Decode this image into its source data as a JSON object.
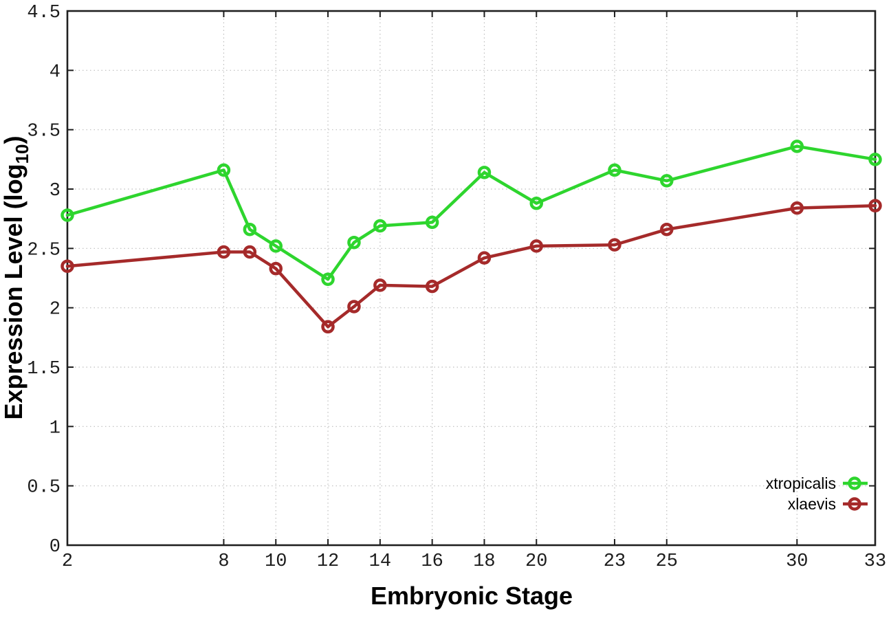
{
  "figure": {
    "background": "#ffffff",
    "grid_color": "#bdbdbd",
    "border_color": "#1f1f1f",
    "text_color": "#1c1c1c"
  },
  "chart_data": {
    "type": "line",
    "title": "",
    "xlabel": "Embryonic Stage",
    "ylabel": "Expression Level (log10)",
    "ylabel_parts": {
      "main": "Expression Level (log",
      "sub": "10",
      "end": ")"
    },
    "xlim": [
      2,
      33
    ],
    "ylim": [
      0,
      4.5
    ],
    "x_ticks": [
      2,
      8,
      10,
      12,
      14,
      16,
      18,
      20,
      23,
      25,
      30,
      33
    ],
    "y_ticks": [
      0,
      0.5,
      1,
      1.5,
      2,
      2.5,
      3,
      3.5,
      4,
      4.5
    ],
    "grid": true,
    "legend_position": "bottom-right",
    "marker": "open-circle",
    "x": [
      2,
      8,
      9,
      10,
      12,
      13,
      14,
      16,
      18,
      20,
      23,
      25,
      30,
      33
    ],
    "series": [
      {
        "name": "xtropicalis",
        "color": "#2ed52e",
        "values": [
          2.78,
          3.16,
          2.66,
          2.52,
          2.24,
          2.55,
          2.69,
          2.72,
          3.14,
          2.88,
          3.16,
          3.07,
          3.36,
          3.25
        ]
      },
      {
        "name": "xlaevis",
        "color": "#a52a2a",
        "values": [
          2.35,
          2.47,
          2.47,
          2.33,
          1.84,
          2.01,
          2.19,
          2.18,
          2.42,
          2.52,
          2.53,
          2.66,
          2.84,
          2.86
        ]
      }
    ]
  }
}
